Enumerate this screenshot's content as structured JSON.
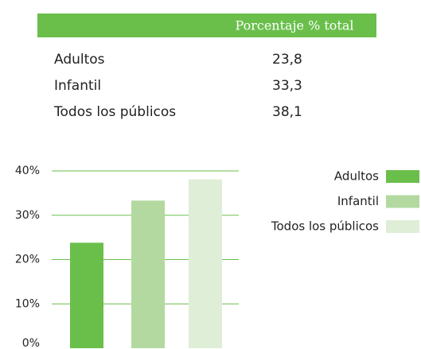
{
  "table": {
    "header": "Porcentaje % total",
    "rows": [
      [
        "Adultos",
        "23,8"
      ],
      [
        "Infantil",
        "33,3"
      ],
      [
        "Todos los públicos",
        "38,1"
      ]
    ]
  },
  "chart_data": {
    "type": "bar",
    "series": [
      {
        "name": "Adultos",
        "color": "#6abf4b",
        "values": [
          23.8
        ]
      },
      {
        "name": "Infantil",
        "color": "#b3d9a0",
        "values": [
          33.3
        ]
      },
      {
        "name": "Todos los públicos",
        "color": "#dfeed6",
        "values": [
          38.1
        ]
      }
    ],
    "ylim": [
      0,
      40
    ],
    "yticks": [
      {
        "value": 0,
        "label": "0%"
      },
      {
        "value": 10,
        "label": "10%"
      },
      {
        "value": 20,
        "label": "20%"
      },
      {
        "value": 30,
        "label": "30%"
      },
      {
        "value": 40,
        "label": "40%"
      }
    ],
    "grid": true,
    "grid_color": "#6abf4b",
    "legend": "right"
  }
}
